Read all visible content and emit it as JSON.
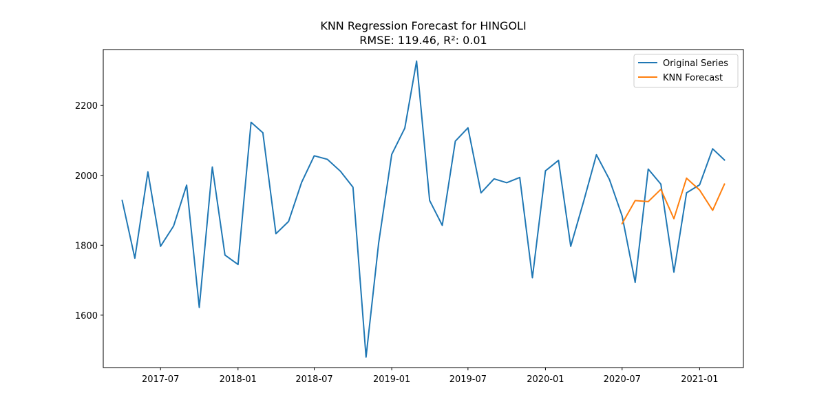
{
  "chart_data": {
    "type": "line",
    "title": "KNN Regression Forecast for HINGOLI",
    "subtitle": "RMSE: 119.46, R²: 0.01",
    "xlabel": "",
    "ylabel": "",
    "xlim": [
      "2017-02-15",
      "2021-04-15"
    ],
    "ylim": [
      1450,
      2360
    ],
    "x_ticks": [
      "2017-07",
      "2018-01",
      "2018-07",
      "2019-01",
      "2019-07",
      "2020-01",
      "2020-07",
      "2021-01"
    ],
    "y_ticks": [
      1600,
      1800,
      2000,
      2200
    ],
    "grid": false,
    "legend_position": "top-right",
    "series": [
      {
        "name": "Original Series",
        "color": "#1f77b4",
        "x": [
          "2017-04-01",
          "2017-05-01",
          "2017-06-01",
          "2017-07-01",
          "2017-08-01",
          "2017-09-01",
          "2017-10-01",
          "2017-11-01",
          "2017-12-01",
          "2018-01-01",
          "2018-02-01",
          "2018-03-01",
          "2018-04-01",
          "2018-05-01",
          "2018-06-01",
          "2018-07-01",
          "2018-08-01",
          "2018-09-01",
          "2018-10-01",
          "2018-11-01",
          "2018-12-01",
          "2019-01-01",
          "2019-02-01",
          "2019-03-01",
          "2019-04-01",
          "2019-05-01",
          "2019-06-01",
          "2019-07-01",
          "2019-08-01",
          "2019-09-01",
          "2019-10-01",
          "2019-11-01",
          "2019-12-01",
          "2020-01-01",
          "2020-02-01",
          "2020-03-01",
          "2020-04-01",
          "2020-05-01",
          "2020-06-01",
          "2020-07-01",
          "2020-08-01",
          "2020-09-01",
          "2020-10-01",
          "2020-11-01",
          "2020-12-01",
          "2021-01-01",
          "2021-02-01",
          "2021-03-01"
        ],
        "values": [
          1928,
          1763,
          2010,
          1797,
          1855,
          1972,
          1622,
          2024,
          1772,
          1745,
          2152,
          2122,
          1833,
          1868,
          1980,
          2056,
          2046,
          2012,
          1966,
          1480,
          1807,
          2060,
          2135,
          2327,
          1928,
          1857,
          2098,
          2136,
          1950,
          1990,
          1979,
          1994,
          1707,
          2013,
          2043,
          1797,
          1927,
          2059,
          1988,
          1884,
          1694,
          2018,
          1975,
          1723,
          1950,
          1973,
          2076,
          2044
        ]
      },
      {
        "name": "KNN Forecast",
        "color": "#ff7f0e",
        "x": [
          "2020-07-01",
          "2020-08-01",
          "2020-09-01",
          "2020-10-01",
          "2020-11-01",
          "2020-12-01",
          "2021-01-01",
          "2021-02-01",
          "2021-03-01"
        ],
        "values": [
          1862,
          1928,
          1925,
          1960,
          1876,
          1992,
          1958,
          1900,
          1975
        ]
      }
    ]
  }
}
